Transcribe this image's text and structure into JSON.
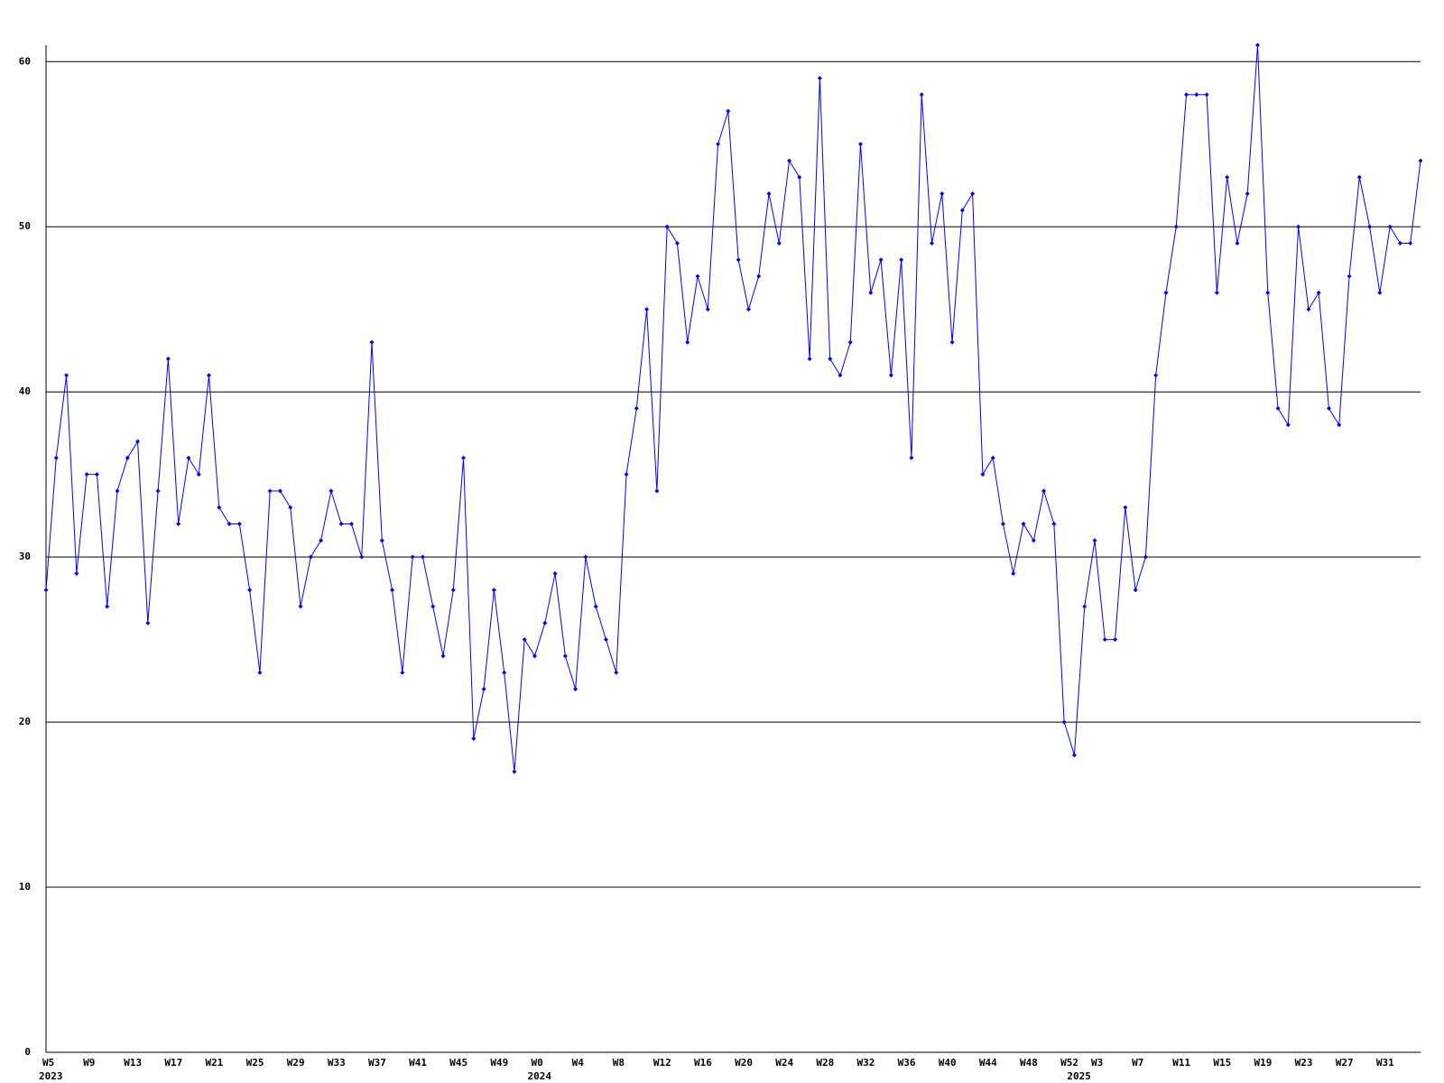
{
  "chart_data": {
    "type": "line",
    "categories": [
      "W5",
      null,
      null,
      null,
      "W9",
      null,
      null,
      null,
      "W13",
      null,
      null,
      null,
      "W17",
      null,
      null,
      null,
      "W21",
      null,
      null,
      null,
      "W25",
      null,
      null,
      null,
      "W29",
      null,
      null,
      null,
      "W33",
      null,
      null,
      null,
      "W37",
      null,
      null,
      null,
      "W41",
      null,
      null,
      null,
      "W45",
      null,
      null,
      null,
      "W49",
      null,
      null,
      null,
      "W0",
      null,
      null,
      null,
      "W4",
      null,
      null,
      null,
      "W8",
      null,
      null,
      null,
      "W12",
      null,
      null,
      null,
      "W16",
      null,
      null,
      null,
      "W20",
      null,
      null,
      null,
      "W24",
      null,
      null,
      null,
      "W28",
      null,
      null,
      null,
      "W32",
      null,
      null,
      null,
      "W36",
      null,
      null,
      null,
      "W40",
      null,
      null,
      null,
      "W44",
      null,
      null,
      null,
      "W48",
      null,
      null,
      null,
      "W52",
      null,
      null,
      "W3",
      null,
      null,
      null,
      "W7",
      null,
      null,
      null,
      "W11",
      null,
      null,
      null,
      "W15",
      null,
      null,
      null,
      "W19",
      null,
      null,
      null,
      "W23",
      null,
      null,
      null,
      "W27",
      null,
      null,
      null,
      "W31",
      null,
      null,
      null,
      null
    ],
    "year_labels": [
      "2023",
      null,
      null,
      null,
      null,
      null,
      null,
      null,
      null,
      null,
      null,
      null,
      null,
      null,
      null,
      null,
      null,
      null,
      null,
      null,
      null,
      null,
      null,
      null,
      null,
      null,
      null,
      null,
      null,
      null,
      null,
      null,
      null,
      null,
      null,
      null,
      null,
      null,
      null,
      null,
      null,
      null,
      null,
      null,
      null,
      null,
      null,
      null,
      "2024",
      null,
      null,
      null,
      null,
      null,
      null,
      null,
      null,
      null,
      null,
      null,
      null,
      null,
      null,
      null,
      null,
      null,
      null,
      null,
      null,
      null,
      null,
      null,
      null,
      null,
      null,
      null,
      null,
      null,
      null,
      null,
      null,
      null,
      null,
      null,
      null,
      null,
      null,
      null,
      null,
      null,
      null,
      null,
      null,
      null,
      null,
      null,
      null,
      null,
      null,
      null,
      null,
      "2025",
      null,
      null,
      null,
      null,
      null,
      null,
      null,
      null,
      null,
      null,
      null,
      null,
      null,
      null,
      null,
      null,
      null,
      null,
      null,
      null,
      null,
      null,
      null,
      null,
      null,
      null,
      null,
      null,
      null,
      null,
      null,
      null,
      null,
      null
    ],
    "values": [
      28,
      36,
      41,
      29,
      35,
      35,
      27,
      34,
      36,
      37,
      26,
      34,
      42,
      32,
      36,
      35,
      41,
      33,
      32,
      32,
      28,
      23,
      34,
      34,
      33,
      27,
      30,
      31,
      34,
      32,
      32,
      30,
      43,
      31,
      28,
      23,
      30,
      30,
      27,
      24,
      28,
      36,
      19,
      22,
      28,
      23,
      17,
      25,
      24,
      26,
      29,
      24,
      22,
      30,
      27,
      25,
      23,
      35,
      39,
      45,
      34,
      50,
      49,
      43,
      47,
      45,
      55,
      57,
      48,
      45,
      47,
      52,
      49,
      54,
      53,
      42,
      59,
      42,
      41,
      43,
      55,
      46,
      48,
      41,
      48,
      36,
      58,
      49,
      52,
      43,
      51,
      52,
      35,
      36,
      32,
      29,
      32,
      31,
      34,
      32,
      20,
      18,
      27,
      31,
      25,
      25,
      33,
      28,
      30,
      41,
      46,
      50,
      58,
      58,
      58,
      46,
      53,
      49,
      52,
      61,
      46,
      39,
      38,
      50,
      45,
      46,
      39,
      38,
      47,
      53,
      50,
      46,
      50,
      49,
      49,
      54
    ],
    "color": "#0000ff",
    "ylim": [
      0,
      61
    ],
    "yticks": [
      0,
      10,
      20,
      30,
      40,
      50,
      60
    ],
    "grid": true
  }
}
